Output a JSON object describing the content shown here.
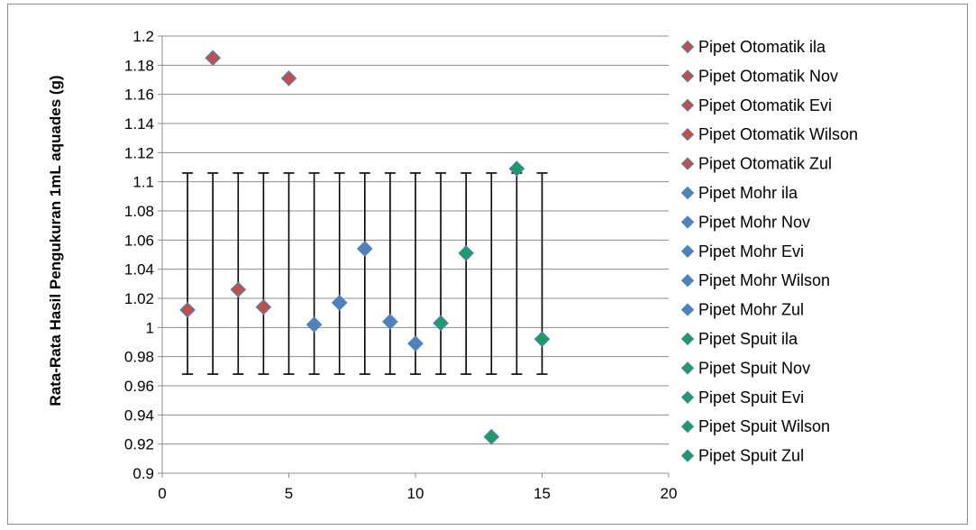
{
  "chart_data": {
    "type": "scatter",
    "title": "",
    "xlabel": "",
    "ylabel": "Rata-Rata Hasil Pengukuran 1mL aquades (g)",
    "xlim": [
      0,
      20
    ],
    "ylim": [
      0.9,
      1.2
    ],
    "x_ticks": [
      0,
      5,
      10,
      15,
      20
    ],
    "y_ticks": [
      0.9,
      0.92,
      0.94,
      0.96,
      0.98,
      1,
      1.02,
      1.04,
      1.06,
      1.08,
      1.1,
      1.12,
      1.14,
      1.16,
      1.18,
      1.2
    ],
    "grid": "horizontal",
    "legend_position": "right",
    "error_bars": {
      "low": 0.968,
      "high": 1.106
    },
    "series": [
      {
        "name": "Pipet Otomatik ila",
        "color": "#c0504d",
        "points": [
          [
            1,
            1.012
          ]
        ]
      },
      {
        "name": "Pipet Otomatik Nov",
        "color": "#c0504d",
        "points": [
          [
            2,
            1.185
          ]
        ]
      },
      {
        "name": "Pipet Otomatik Evi",
        "color": "#c0504d",
        "points": [
          [
            3,
            1.026
          ]
        ]
      },
      {
        "name": "Pipet Otomatik Wilson",
        "color": "#c0504d",
        "points": [
          [
            4,
            1.014
          ]
        ]
      },
      {
        "name": "Pipet Otomatik Zul",
        "color": "#c0504d",
        "points": [
          [
            5,
            1.171
          ]
        ]
      },
      {
        "name": "Pipet Mohr ila",
        "color": "#4f81bd",
        "points": [
          [
            6,
            1.002
          ]
        ]
      },
      {
        "name": "Pipet Mohr Nov",
        "color": "#4f81bd",
        "points": [
          [
            7,
            1.017
          ]
        ]
      },
      {
        "name": "Pipet Mohr Evi",
        "color": "#4f81bd",
        "points": [
          [
            8,
            1.054
          ]
        ]
      },
      {
        "name": "Pipet Mohr Wilson",
        "color": "#4f81bd",
        "points": [
          [
            9,
            1.004
          ]
        ]
      },
      {
        "name": "Pipet Mohr Zul",
        "color": "#4f81bd",
        "points": [
          [
            10,
            0.989
          ]
        ]
      },
      {
        "name": "Pipet Spuit ila",
        "color": "#1e9c67",
        "points": [
          [
            11,
            1.003
          ]
        ]
      },
      {
        "name": "Pipet Spuit Nov",
        "color": "#1e9c67",
        "points": [
          [
            12,
            1.051
          ]
        ]
      },
      {
        "name": "Pipet Spuit Evi",
        "color": "#1e9c67",
        "points": [
          [
            13,
            0.925
          ]
        ]
      },
      {
        "name": "Pipet Spuit Wilson",
        "color": "#1e9c67",
        "points": [
          [
            14,
            1.109
          ]
        ]
      },
      {
        "name": "Pipet Spuit Zul",
        "color": "#1e9c67",
        "points": [
          [
            15,
            0.992
          ]
        ]
      }
    ]
  }
}
